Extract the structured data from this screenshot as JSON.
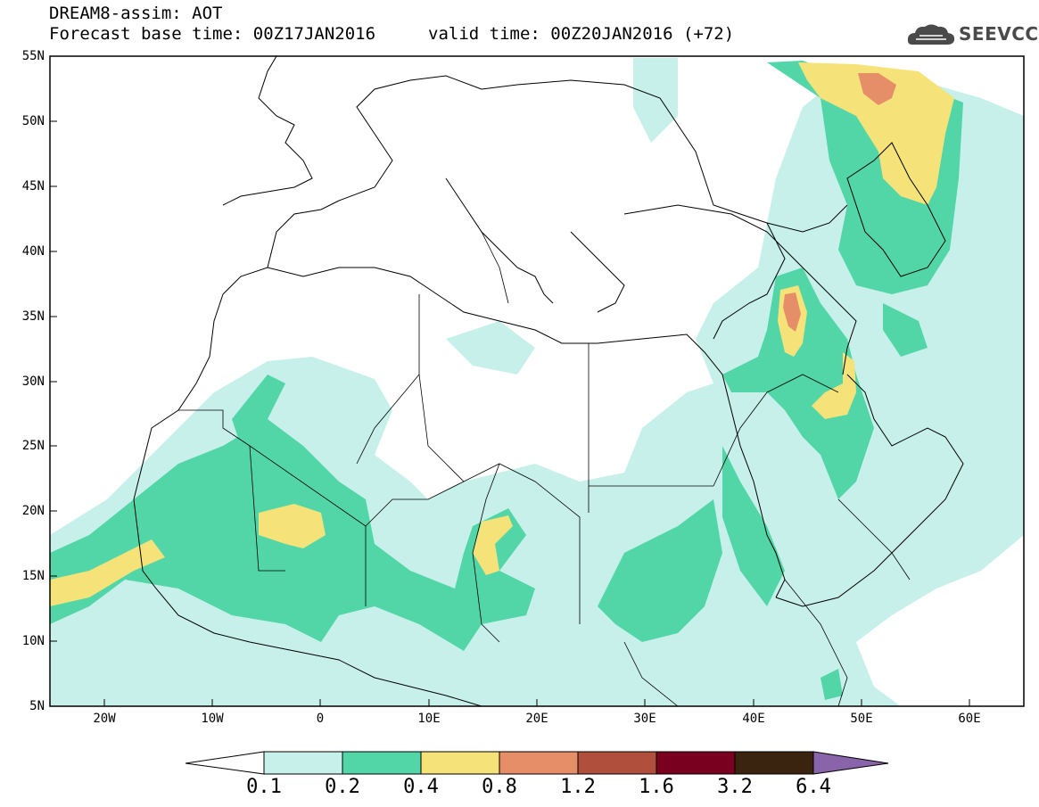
{
  "header": {
    "title_line1": "DREAM8-assim: AOT",
    "title_line2": "Forecast base time: 00Z17JAN2016",
    "valid_time": "valid time: 00Z20JAN2016 (+72)",
    "logo_text": "SEEVCCC",
    "logo_icon": "cloud-logo-icon"
  },
  "axes": {
    "lat_labels": [
      "55N",
      "50N",
      "45N",
      "40N",
      "35N",
      "30N",
      "25N",
      "20N",
      "15N",
      "10N",
      "5N"
    ],
    "lon_labels": [
      "20W",
      "10W",
      "0",
      "10E",
      "20E",
      "30E",
      "40E",
      "50E",
      "60E"
    ]
  },
  "colorbar": {
    "labels": [
      "0.1",
      "0.2",
      "0.4",
      "0.8",
      "1.2",
      "1.6",
      "3.2",
      "6.4"
    ],
    "colors": [
      "#ffffff",
      "#c7f0ea",
      "#52d6a8",
      "#f5e37a",
      "#e58e68",
      "#b0503c",
      "#7a0020",
      "#3a2410",
      "#8a64aa"
    ]
  },
  "colors": {
    "c1": "#c7f0ea",
    "c2": "#52d6a8",
    "c3": "#f5e37a",
    "c4": "#e58e68",
    "c5": "#b0503c"
  }
}
